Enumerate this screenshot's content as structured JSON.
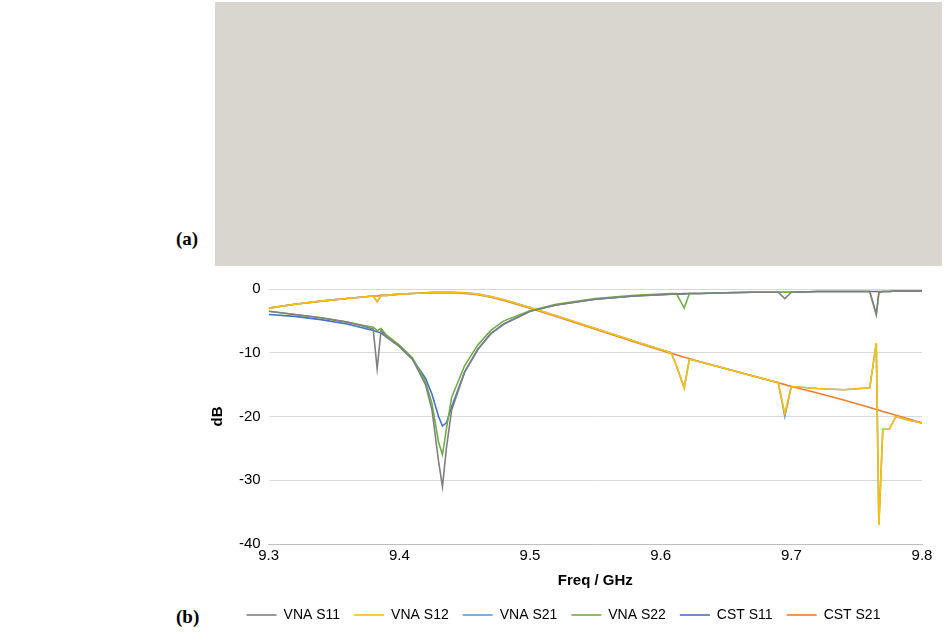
{
  "panel_labels": [
    "(a)",
    "(b)"
  ],
  "chart_data": {
    "type": "line",
    "x_label": "Freq / GHz",
    "y_label": "dB",
    "x": [
      9.3,
      9.32,
      9.34,
      9.36,
      9.37,
      9.38,
      9.383,
      9.386,
      9.39,
      9.4,
      9.41,
      9.42,
      9.425,
      9.43,
      9.433,
      9.436,
      9.44,
      9.45,
      9.46,
      9.47,
      9.48,
      9.5,
      9.52,
      9.55,
      9.58,
      9.6,
      9.608,
      9.612,
      9.618,
      9.622,
      9.63,
      9.65,
      9.67,
      9.69,
      9.695,
      9.7,
      9.72,
      9.74,
      9.76,
      9.765,
      9.767,
      9.77,
      9.775,
      9.78,
      9.79,
      9.8
    ],
    "series": [
      {
        "name": "VNA S11",
        "color": "#808080",
        "values": [
          -3.5,
          -4,
          -4.5,
          -5.2,
          -5.7,
          -6.3,
          -12.5,
          -6.5,
          -7.5,
          -9,
          -11,
          -15,
          -19,
          -27,
          -31,
          -25,
          -19,
          -13,
          -9.5,
          -7,
          -5.5,
          -3.5,
          -2.5,
          -1.6,
          -1.1,
          -0.9,
          -0.8,
          -0.8,
          -0.8,
          -0.7,
          -0.7,
          -0.6,
          -0.5,
          -0.5,
          -1.5,
          -0.5,
          -0.4,
          -0.4,
          -0.4,
          -4,
          -0.6,
          -0.4,
          -0.4,
          -0.3,
          -0.3,
          -0.3
        ]
      },
      {
        "name": "VNA S12",
        "color": "#ffc000",
        "values": [
          -3,
          -2.4,
          -1.9,
          -1.5,
          -1.3,
          -1.1,
          -2,
          -1,
          -1,
          -0.8,
          -0.7,
          -0.6,
          -0.5,
          -0.5,
          -0.5,
          -0.5,
          -0.5,
          -0.6,
          -0.8,
          -1.2,
          -1.7,
          -2.9,
          -4.2,
          -6.2,
          -8.2,
          -9.5,
          -10,
          -12,
          -15.5,
          -11,
          -11.4,
          -12.5,
          -13.6,
          -14.7,
          -19.5,
          -15.3,
          -15.6,
          -15.8,
          -15.5,
          -8.5,
          -37,
          -22,
          -22,
          -20,
          -20.6,
          -21
        ]
      },
      {
        "name": "VNA S21",
        "color": "#5b9bd5",
        "values": [
          -3,
          -2.4,
          -1.9,
          -1.5,
          -1.3,
          -1.1,
          -2,
          -1,
          -1,
          -0.8,
          -0.7,
          -0.6,
          -0.5,
          -0.5,
          -0.5,
          -0.5,
          -0.5,
          -0.6,
          -0.8,
          -1.2,
          -1.7,
          -2.9,
          -4.2,
          -6.2,
          -8.2,
          -9.5,
          -10,
          -12,
          -15.5,
          -11,
          -11.4,
          -12.5,
          -13.6,
          -14.7,
          -20,
          -15.3,
          -15.6,
          -15.8,
          -15.5,
          -8.5,
          -37,
          -22,
          -22,
          -20,
          -20.6,
          -21
        ]
      },
      {
        "name": "VNA S22",
        "color": "#70ad47",
        "values": [
          -3.5,
          -4,
          -4.5,
          -5.2,
          -5.6,
          -6,
          -6.5,
          -6.2,
          -7.2,
          -8.8,
          -10.8,
          -14.5,
          -18,
          -24,
          -26,
          -22,
          -17,
          -12,
          -8.8,
          -6.5,
          -5,
          -3.4,
          -2.4,
          -1.5,
          -1,
          -0.8,
          -0.7,
          -0.7,
          -3,
          -0.7,
          -0.7,
          -0.6,
          -0.5,
          -0.5,
          -0.5,
          -0.5,
          -0.4,
          -0.4,
          -0.4,
          -4,
          -0.5,
          -0.4,
          -0.4,
          -0.3,
          -0.3,
          -0.3
        ]
      },
      {
        "name": "CST S11",
        "color": "#4472c4",
        "values": [
          -4,
          -4.3,
          -4.8,
          -5.5,
          -6,
          -6.5,
          -6.7,
          -6.9,
          -7.5,
          -9,
          -11,
          -14,
          -16.5,
          -20,
          -21.5,
          -21,
          -18.5,
          -13,
          -9.5,
          -7,
          -5.5,
          -3.5,
          -2.5,
          -1.6,
          -1.1,
          -0.9,
          -0.8,
          -0.8,
          -0.7,
          -0.7,
          -0.7,
          -0.6,
          -0.5,
          -0.5,
          -0.5,
          -0.5,
          -0.4,
          -0.4,
          -0.4,
          -0.4,
          -0.4,
          -0.4,
          -0.4,
          -0.3,
          -0.3,
          -0.3
        ]
      },
      {
        "name": "CST S21",
        "color": "#ed7d31",
        "values": [
          -3,
          -2.4,
          -1.9,
          -1.5,
          -1.3,
          -1.1,
          -1.1,
          -1,
          -1,
          -0.8,
          -0.7,
          -0.6,
          -0.6,
          -0.6,
          -0.6,
          -0.6,
          -0.6,
          -0.7,
          -0.9,
          -1.3,
          -1.8,
          -3,
          -4.3,
          -6.3,
          -8.3,
          -9.6,
          -10.1,
          -10.3,
          -10.7,
          -10.9,
          -11.4,
          -12.5,
          -13.6,
          -14.7,
          -15,
          -15.3,
          -16.3,
          -17.4,
          -18.6,
          -18.9,
          -19,
          -19.2,
          -19.5,
          -19.8,
          -20.4,
          -21
        ]
      }
    ],
    "xlim": [
      9.3,
      9.8
    ],
    "xticks": [
      9.3,
      9.4,
      9.5,
      9.6,
      9.7,
      9.8
    ],
    "ylim": [
      -40,
      0
    ],
    "yticks": [
      -40,
      -30,
      -20,
      -10,
      0
    ],
    "grid": "y",
    "legend": "bottom"
  }
}
